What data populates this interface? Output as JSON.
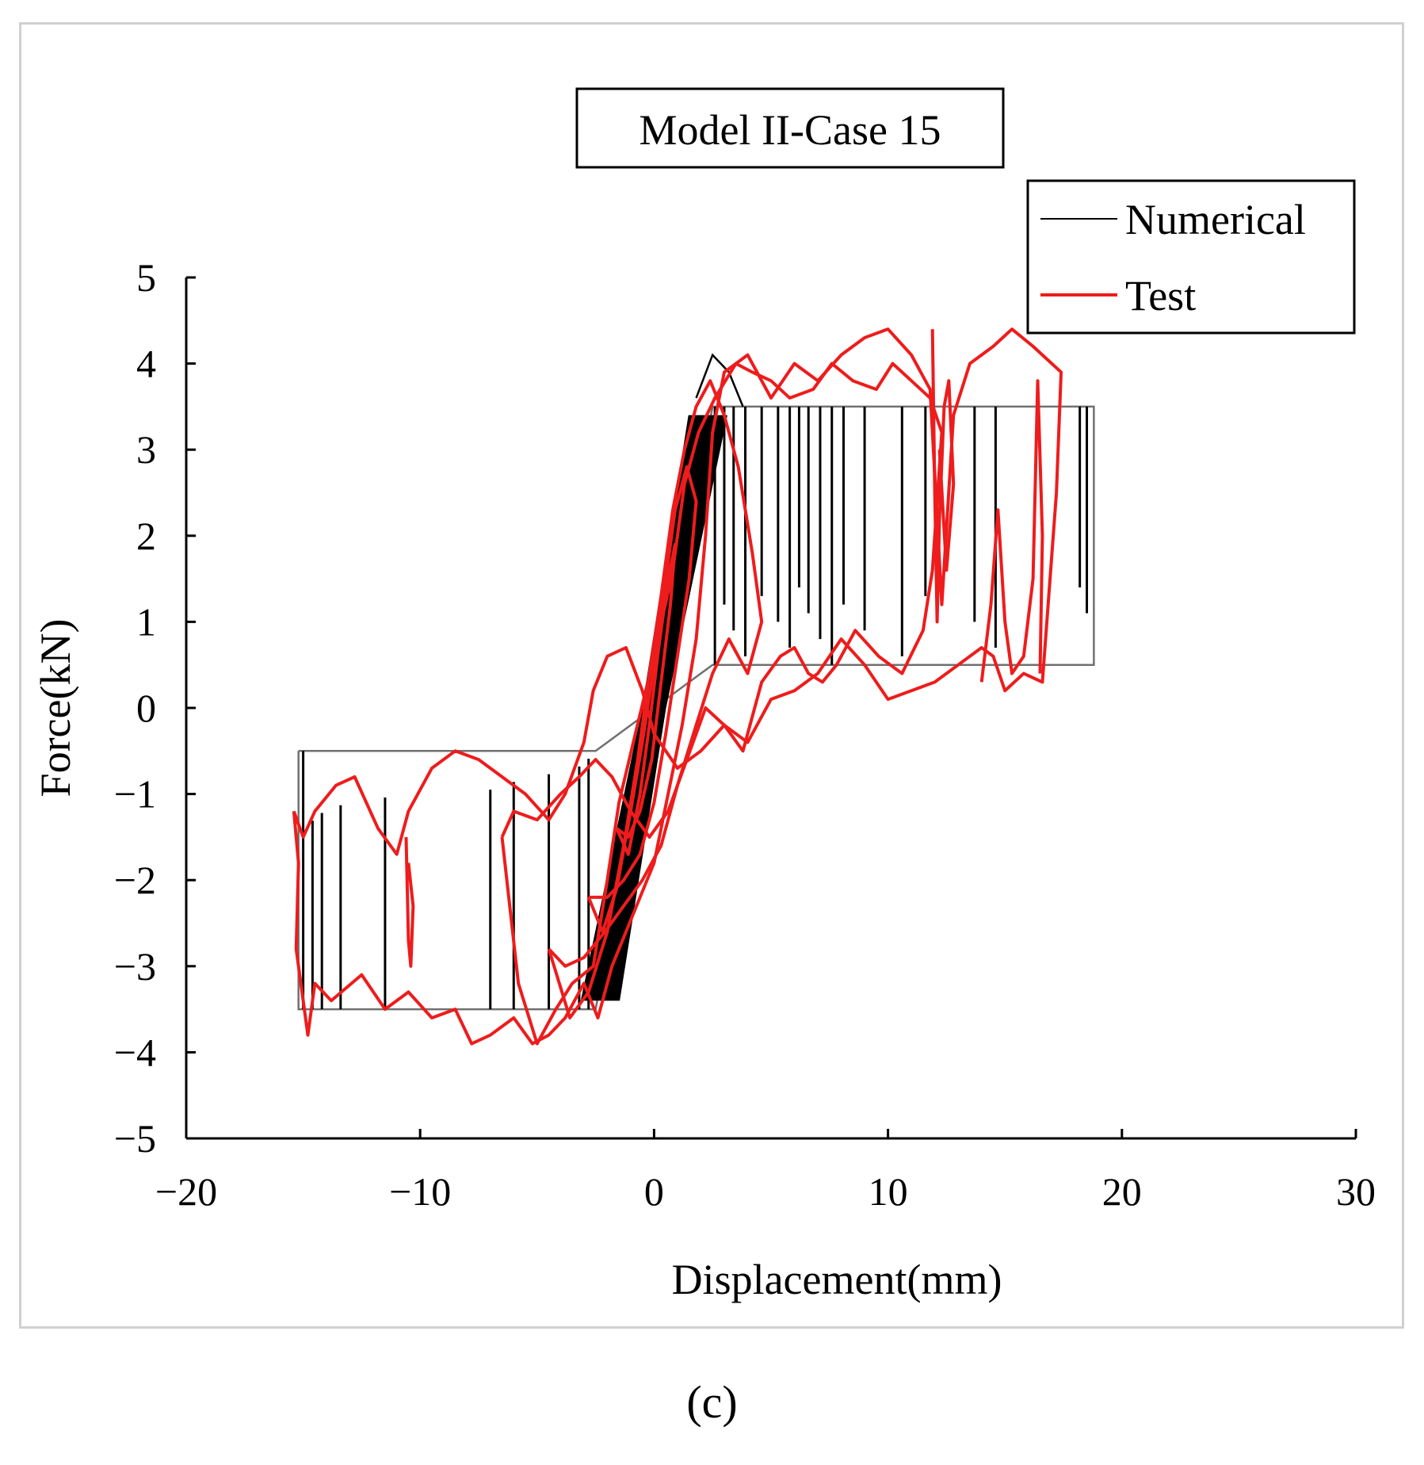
{
  "caption": "(c)",
  "colors": {
    "numerical": "#000000",
    "numerical_fill": "#707070",
    "test": "#ee1c1c"
  },
  "chart_data": {
    "type": "line",
    "title": "Model II-Case 15",
    "xlabel": "Displacement(mm)",
    "ylabel": "Force(kN)",
    "xlim": [
      -20,
      30
    ],
    "ylim": [
      -5,
      5
    ],
    "xticks": [
      -20,
      -10,
      0,
      10,
      20,
      30
    ],
    "yticks": [
      5,
      4,
      3,
      2,
      1,
      0,
      -1,
      -2,
      -3,
      -4,
      -5
    ],
    "xtick_labels": [
      "−20",
      "−10",
      "0",
      "10",
      "20",
      "30"
    ],
    "ytick_labels": [
      "5",
      "4",
      "3",
      "2",
      "1",
      "0",
      "−1",
      "−2",
      "−3",
      "−4",
      "−5"
    ],
    "legend": {
      "position": "top-right",
      "entries": [
        "Numerical",
        "Test"
      ]
    },
    "series": [
      {
        "name": "Numerical",
        "description": "bilinear hysteresis envelope with vertical unloading branches",
        "envelope": [
          [
            -15.2,
            -0.5
          ],
          [
            -2.5,
            -0.5
          ],
          [
            0,
            0
          ],
          [
            2.5,
            3.5
          ],
          [
            18.8,
            3.5
          ],
          [
            18.8,
            0.5
          ],
          [
            2.5,
            0.5
          ],
          [
            0,
            0
          ],
          [
            -2.5,
            -3.5
          ],
          [
            -15.2,
            -3.5
          ],
          [
            -15.2,
            -0.5
          ]
        ],
        "verticals_positive": [
          2.6,
          3.0,
          3.4,
          3.9,
          4.6,
          5.3,
          5.8,
          6.2,
          6.6,
          7.1,
          7.6,
          8.1,
          9.0,
          10.6,
          11.6,
          13.7,
          14.6,
          18.2,
          18.5
        ],
        "verticals_negative": [
          -15.0,
          -14.6,
          -14.2,
          -13.4,
          -11.5,
          -7.0,
          -6.0,
          -4.5,
          -3.2,
          -2.8
        ]
      },
      {
        "name": "Test",
        "points": [
          [
            -15.4,
            -1.2
          ],
          [
            -15.2,
            -1.8
          ],
          [
            -15.3,
            -2.8
          ],
          [
            -14.8,
            -3.8
          ],
          [
            -14.5,
            -3.2
          ],
          [
            -13.8,
            -3.4
          ],
          [
            -12.5,
            -3.1
          ],
          [
            -11.5,
            -3.5
          ],
          [
            -10.5,
            -3.3
          ],
          [
            -9.5,
            -3.6
          ],
          [
            -8.5,
            -3.5
          ],
          [
            -7.8,
            -3.9
          ],
          [
            -7.0,
            -3.8
          ],
          [
            -6.0,
            -3.6
          ],
          [
            -5.2,
            -3.9
          ],
          [
            -4.5,
            -3.8
          ],
          [
            -3.8,
            -3.6
          ],
          [
            -3.0,
            -3.2
          ],
          [
            -2.4,
            -3.6
          ],
          [
            -1.8,
            -3.0
          ],
          [
            -1.2,
            -2.6
          ],
          [
            -0.6,
            -2.2
          ],
          [
            0.0,
            -1.8
          ],
          [
            0.6,
            -1.0
          ],
          [
            1.2,
            -0.2
          ],
          [
            1.8,
            0.8
          ],
          [
            2.2,
            2.0
          ],
          [
            2.5,
            3.2
          ],
          [
            3.0,
            3.9
          ],
          [
            4.0,
            4.1
          ],
          [
            5.0,
            3.6
          ],
          [
            6.0,
            4.0
          ],
          [
            7.0,
            3.8
          ],
          [
            8.0,
            4.1
          ],
          [
            9.0,
            4.3
          ],
          [
            10.0,
            4.4
          ],
          [
            11.0,
            4.1
          ],
          [
            11.8,
            3.7
          ],
          [
            12.3,
            1.2
          ],
          [
            12.8,
            3.4
          ],
          [
            13.5,
            4.0
          ],
          [
            14.5,
            4.2
          ],
          [
            15.3,
            4.4
          ],
          [
            16.2,
            4.2
          ],
          [
            17.0,
            4.0
          ],
          [
            17.4,
            3.9
          ],
          [
            17.2,
            2.5
          ],
          [
            16.6,
            0.3
          ],
          [
            15.8,
            0.4
          ],
          [
            15.0,
            0.2
          ],
          [
            14.5,
            0.6
          ],
          [
            14.0,
            0.7
          ],
          [
            13.0,
            0.5
          ],
          [
            12.0,
            0.3
          ],
          [
            11.0,
            0.2
          ],
          [
            10.0,
            0.1
          ],
          [
            9.0,
            0.5
          ],
          [
            8.0,
            0.8
          ],
          [
            7.0,
            0.4
          ],
          [
            6.0,
            0.2
          ],
          [
            5.0,
            0.1
          ],
          [
            4.0,
            -0.4
          ],
          [
            3.0,
            -0.2
          ],
          [
            2.0,
            -0.5
          ],
          [
            1.0,
            -0.7
          ],
          [
            0.5,
            -0.5
          ],
          [
            0.0,
            -0.3
          ],
          [
            -0.5,
            0.2
          ],
          [
            -1.2,
            0.7
          ],
          [
            -2.0,
            0.6
          ],
          [
            -2.6,
            0.2
          ],
          [
            -3.0,
            -0.4
          ],
          [
            -3.8,
            -1.0
          ],
          [
            -4.5,
            -1.3
          ],
          [
            -5.5,
            -1.0
          ],
          [
            -6.5,
            -0.8
          ],
          [
            -7.5,
            -0.6
          ],
          [
            -8.5,
            -0.5
          ],
          [
            -9.5,
            -0.7
          ],
          [
            -10.5,
            -1.2
          ],
          [
            -11.0,
            -1.7
          ],
          [
            -11.8,
            -1.4
          ],
          [
            -12.8,
            -0.8
          ],
          [
            -13.6,
            -0.9
          ],
          [
            -14.5,
            -1.2
          ],
          [
            -15.0,
            -1.5
          ],
          [
            -15.4,
            -1.2
          ]
        ]
      },
      {
        "name": "Test",
        "points": [
          [
            -6.5,
            -1.5
          ],
          [
            -5.8,
            -3.2
          ],
          [
            -5.0,
            -3.9
          ],
          [
            -4.2,
            -3.5
          ],
          [
            -3.5,
            -3.2
          ],
          [
            -2.6,
            -3.0
          ],
          [
            -2.0,
            -2.0
          ],
          [
            -1.5,
            -1.1
          ],
          [
            -0.8,
            -0.3
          ],
          [
            0.0,
            0.6
          ],
          [
            0.8,
            1.6
          ],
          [
            1.3,
            2.6
          ],
          [
            1.9,
            3.2
          ],
          [
            2.6,
            3.6
          ],
          [
            3.5,
            4.0
          ],
          [
            4.2,
            3.9
          ],
          [
            5.0,
            3.8
          ],
          [
            5.8,
            3.6
          ],
          [
            6.8,
            3.7
          ],
          [
            7.6,
            4.0
          ],
          [
            8.5,
            3.8
          ],
          [
            9.5,
            3.7
          ],
          [
            10.2,
            4.0
          ],
          [
            11.0,
            3.8
          ],
          [
            11.8,
            3.6
          ],
          [
            12.3,
            3.2
          ],
          [
            11.9,
            1.6
          ],
          [
            11.5,
            0.9
          ],
          [
            10.6,
            0.4
          ],
          [
            9.6,
            0.6
          ],
          [
            8.6,
            0.9
          ],
          [
            7.8,
            0.5
          ],
          [
            7.2,
            0.3
          ],
          [
            6.6,
            0.4
          ],
          [
            6.0,
            0.7
          ],
          [
            5.4,
            0.6
          ],
          [
            4.6,
            0.3
          ],
          [
            3.8,
            -0.5
          ],
          [
            3.0,
            -0.2
          ],
          [
            2.2,
            0.0
          ],
          [
            1.4,
            -0.6
          ],
          [
            0.6,
            -1.2
          ],
          [
            -0.2,
            -1.5
          ],
          [
            -1.0,
            -1.2
          ],
          [
            -1.8,
            -0.8
          ],
          [
            -2.5,
            -0.6
          ],
          [
            -3.2,
            -0.8
          ],
          [
            -4.0,
            -1.0
          ],
          [
            -5.0,
            -1.3
          ],
          [
            -6.0,
            -1.2
          ],
          [
            -6.5,
            -1.5
          ]
        ]
      },
      {
        "name": "Test",
        "points": [
          [
            -4.5,
            -2.8
          ],
          [
            -3.6,
            -3.6
          ],
          [
            -2.8,
            -3.3
          ],
          [
            -2.0,
            -2.6
          ],
          [
            -1.3,
            -1.6
          ],
          [
            -0.7,
            -0.6
          ],
          [
            -0.2,
            0.4
          ],
          [
            0.3,
            1.3
          ],
          [
            0.8,
            2.3
          ],
          [
            1.3,
            3.0
          ],
          [
            1.8,
            3.5
          ],
          [
            2.4,
            3.8
          ],
          [
            3.0,
            3.4
          ],
          [
            3.6,
            2.8
          ],
          [
            4.2,
            1.8
          ],
          [
            4.6,
            1.0
          ],
          [
            4.0,
            0.4
          ],
          [
            3.2,
            0.8
          ],
          [
            2.5,
            0.4
          ],
          [
            1.8,
            -0.2
          ],
          [
            1.0,
            -0.9
          ],
          [
            0.3,
            -1.6
          ],
          [
            -0.5,
            -2.0
          ],
          [
            -1.3,
            -2.3
          ],
          [
            -2.1,
            -2.6
          ],
          [
            -3.0,
            -2.9
          ],
          [
            -3.8,
            -3.0
          ],
          [
            -4.5,
            -2.8
          ]
        ]
      },
      {
        "name": "Test",
        "points": [
          [
            -2.8,
            -2.2
          ],
          [
            -2.2,
            -2.6
          ],
          [
            -1.6,
            -2.1
          ],
          [
            -1.0,
            -1.2
          ],
          [
            -0.5,
            -0.4
          ],
          [
            0.0,
            0.5
          ],
          [
            0.5,
            1.5
          ],
          [
            0.9,
            2.3
          ],
          [
            1.4,
            2.8
          ],
          [
            1.8,
            2.4
          ],
          [
            1.5,
            1.5
          ],
          [
            1.0,
            0.6
          ],
          [
            0.5,
            -0.3
          ],
          [
            0.0,
            -1.1
          ],
          [
            -0.6,
            -1.7
          ],
          [
            -1.3,
            -2.0
          ],
          [
            -2.0,
            -2.2
          ],
          [
            -2.8,
            -2.2
          ]
        ]
      },
      {
        "name": "Test",
        "points": [
          [
            -1.6,
            -1.4
          ],
          [
            -1.1,
            -1.7
          ],
          [
            -0.6,
            -1.0
          ],
          [
            -0.2,
            -0.2
          ],
          [
            0.2,
            0.7
          ],
          [
            0.6,
            1.5
          ],
          [
            0.9,
            1.9
          ],
          [
            0.7,
            1.2
          ],
          [
            0.3,
            0.3
          ],
          [
            -0.1,
            -0.6
          ],
          [
            -0.6,
            -1.2
          ],
          [
            -1.1,
            -1.5
          ],
          [
            -1.6,
            -1.4
          ]
        ]
      },
      {
        "name": "Test",
        "points": [
          [
            14.0,
            0.3
          ],
          [
            14.4,
            1.2
          ],
          [
            14.7,
            2.3
          ],
          [
            15.0,
            1.0
          ],
          [
            15.3,
            0.4
          ],
          [
            15.8,
            0.6
          ],
          [
            16.2,
            1.5
          ],
          [
            16.4,
            3.8
          ],
          [
            16.6,
            2.0
          ],
          [
            16.5,
            0.4
          ]
        ]
      },
      {
        "name": "Test",
        "points": [
          [
            11.9,
            4.4
          ],
          [
            12.0,
            2.5
          ],
          [
            12.1,
            1.0
          ],
          [
            12.2,
            2.2
          ],
          [
            12.4,
            3.5
          ],
          [
            12.6,
            3.8
          ],
          [
            12.8,
            2.6
          ],
          [
            12.5,
            1.6
          ],
          [
            12.2,
            3.0
          ]
        ]
      },
      {
        "name": "Test",
        "points": [
          [
            -10.6,
            -1.5
          ],
          [
            -10.5,
            -2.7
          ],
          [
            -10.4,
            -3.0
          ],
          [
            -10.3,
            -2.3
          ],
          [
            -10.5,
            -1.8
          ]
        ]
      }
    ]
  }
}
